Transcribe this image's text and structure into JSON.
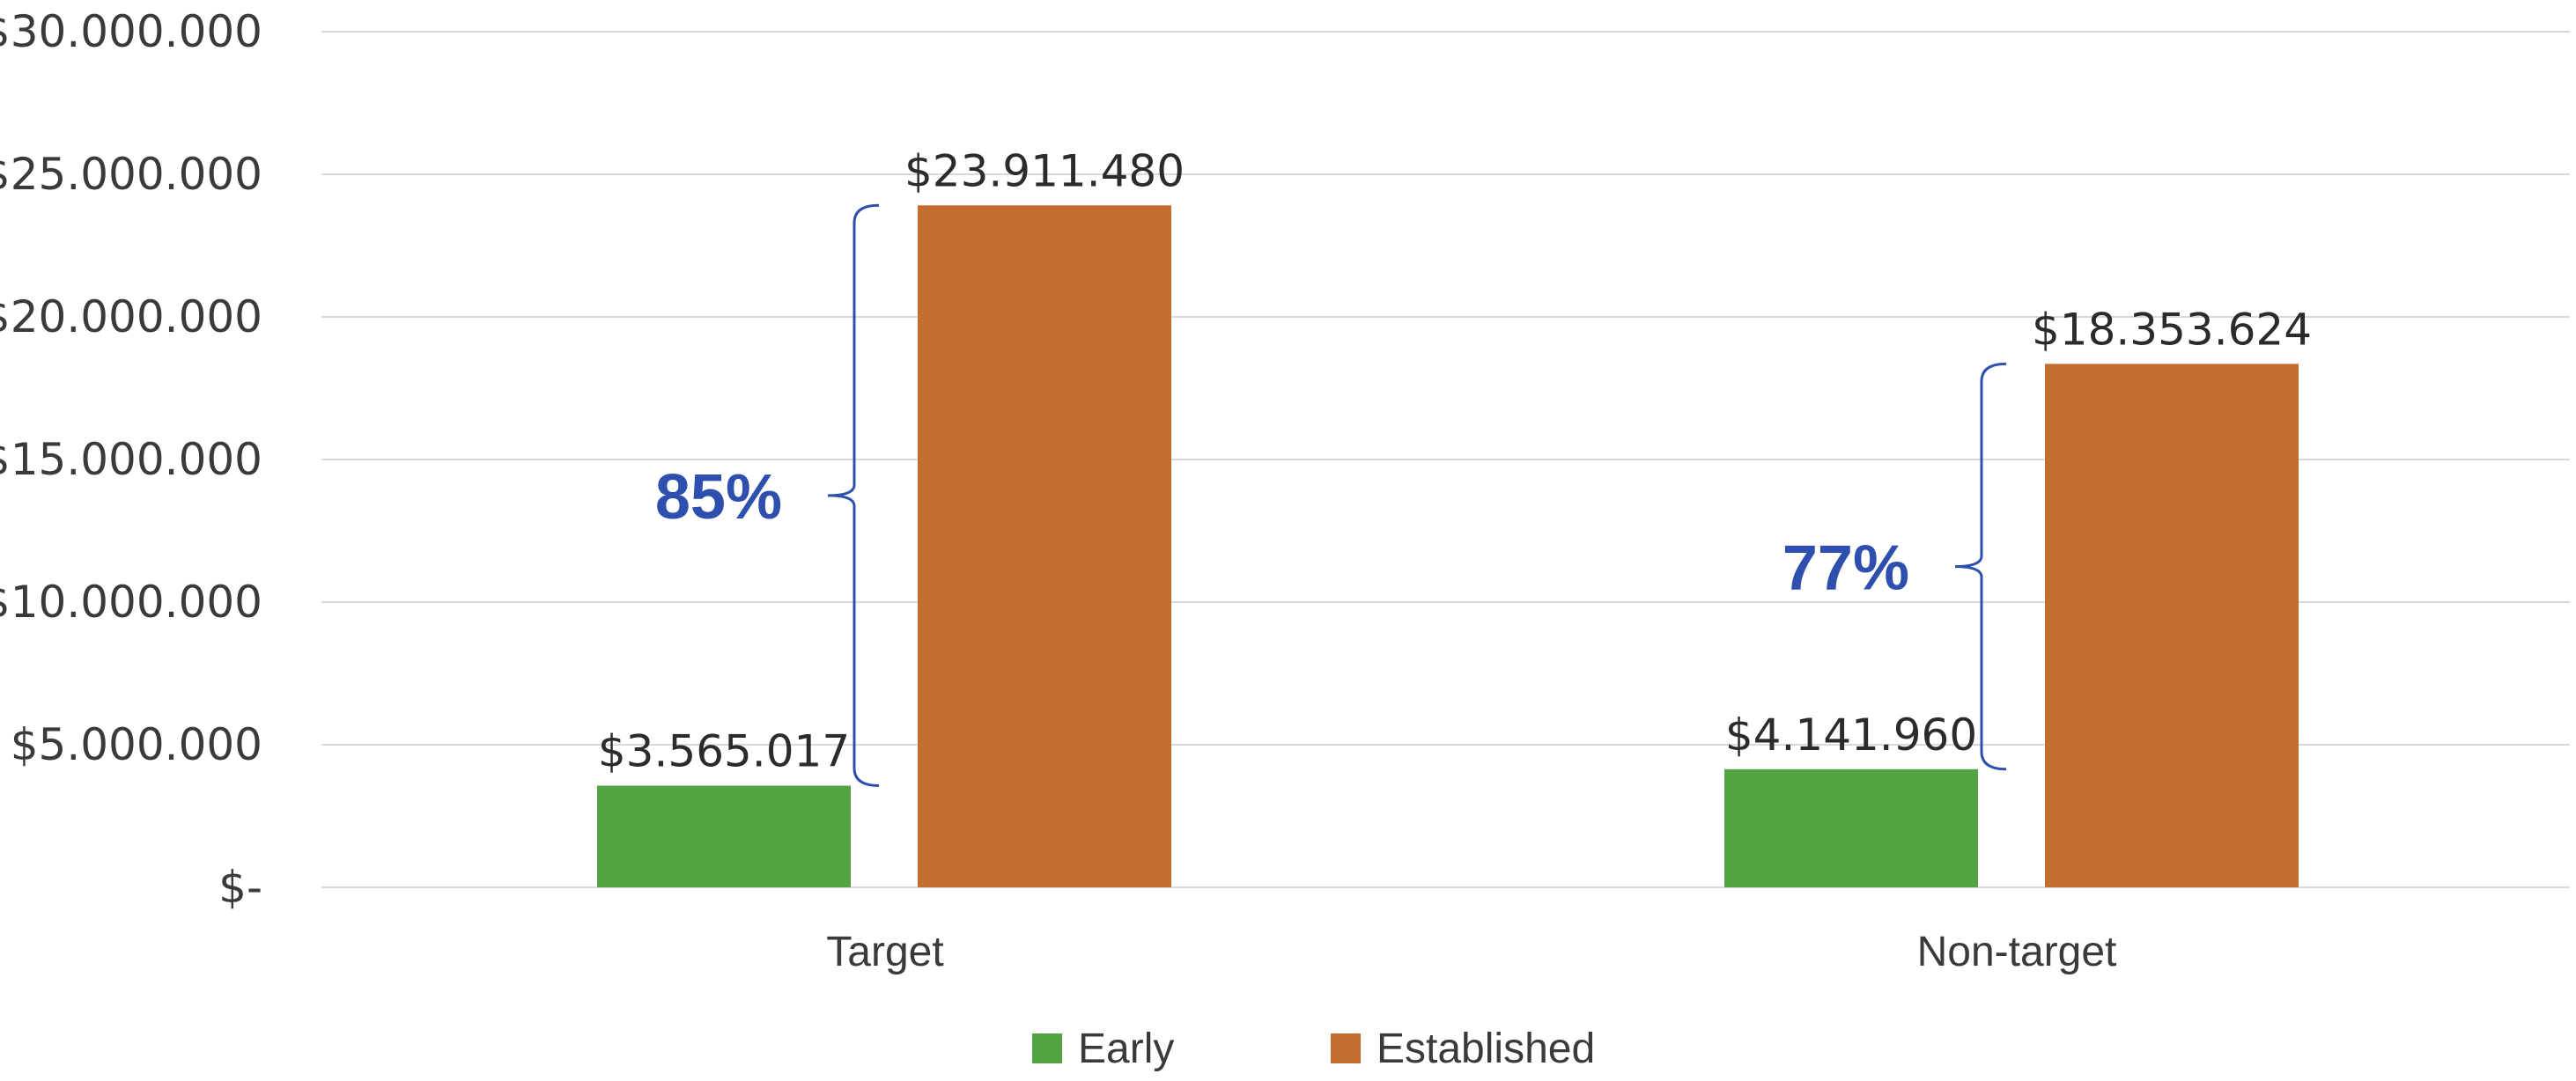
{
  "chart_data": {
    "type": "bar",
    "categories": [
      "Target",
      "Non-target"
    ],
    "series": [
      {
        "name": "Early",
        "color": "#53a343",
        "values": [
          3565017,
          4141960
        ],
        "labels": [
          "$3.565.017",
          "$4.141.960"
        ]
      },
      {
        "name": "Established",
        "color": "#c46d31",
        "values": [
          23911480,
          18353624
        ],
        "labels": [
          "$23.911.480",
          "$18.353.624"
        ]
      }
    ],
    "ylim": [
      0,
      30000000
    ],
    "y_ticks": [
      0,
      5000000,
      10000000,
      15000000,
      20000000,
      25000000,
      30000000
    ],
    "y_tick_labels": [
      "$-",
      "$5.000.000",
      "$10.000.000",
      "$15.000.000",
      "$20.000.000",
      "$25.000.000",
      "$30.000.000"
    ],
    "annotations": [
      {
        "category": "Target",
        "text": "85%"
      },
      {
        "category": "Non-target",
        "text": "77%"
      }
    ],
    "annotation_color": "#2f4fae",
    "grid": true,
    "legend": "bottom-center"
  }
}
